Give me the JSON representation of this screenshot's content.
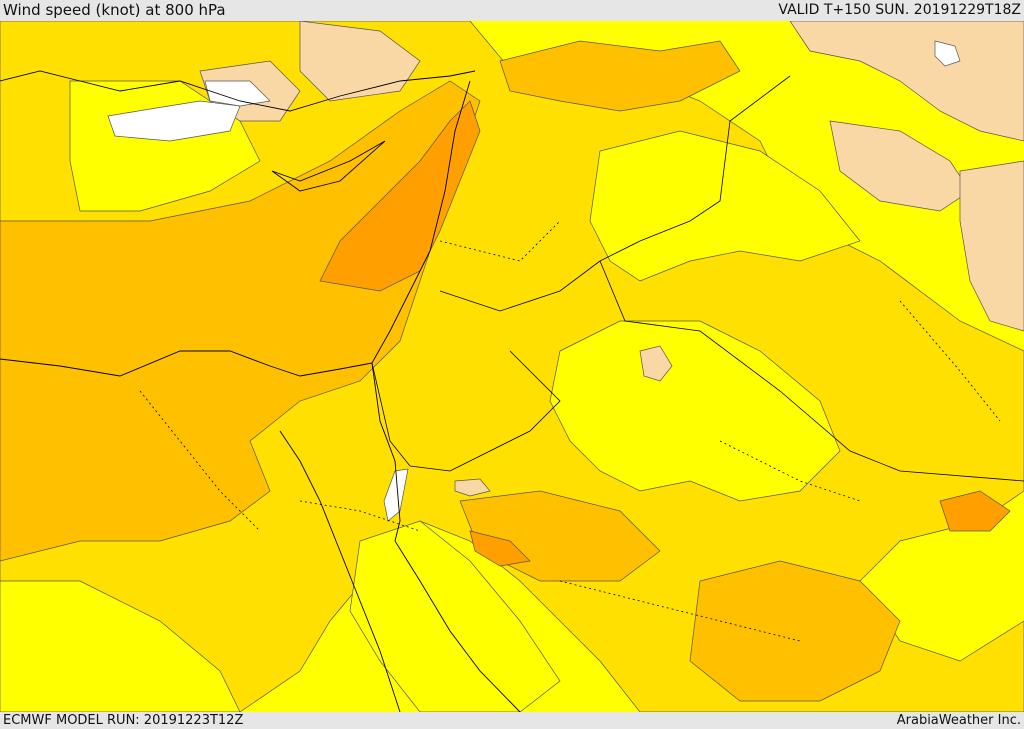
{
  "header": {
    "title": "Wind speed (knot) at 800 hPa",
    "valid": "VALID T+150 SUN. 20191229T18Z"
  },
  "footer": {
    "model_run": "ECMWF MODEL RUN: 20191223T12Z",
    "credit": "ArabiaWeather Inc."
  },
  "palette": {
    "lt10": "#ffffff",
    "b10_15": "#fad8a6",
    "b15_20": "#ffff00",
    "b20_25": "#ffe000",
    "b25_30": "#ffc000",
    "b30_35": "#ffa000",
    "b35_40": "#f48e20"
  }
}
